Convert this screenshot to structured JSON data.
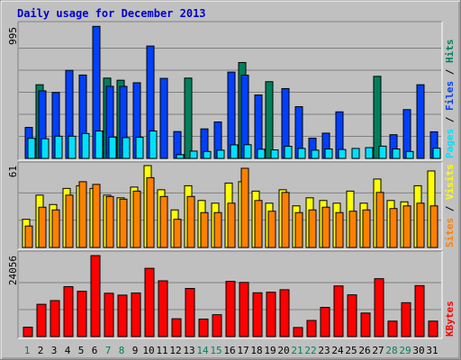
{
  "colors": {
    "background": "#c0c0c0",
    "hits": "#00805c",
    "files": "#0040ff",
    "pages": "#00e0ff",
    "visits": "#ffff00",
    "sites": "#ff8000",
    "kbytes": "#ff0000",
    "title": "#0000cc",
    "weekend": "#00805c",
    "weekday": "#000000"
  },
  "chart_data": [
    {
      "type": "bar",
      "title": "Daily usage for December 2013",
      "categories": [
        "1",
        "2",
        "3",
        "4",
        "5",
        "6",
        "7",
        "8",
        "9",
        "10",
        "11",
        "12",
        "13",
        "14",
        "15",
        "16",
        "17",
        "18",
        "19",
        "20",
        "21",
        "22",
        "23",
        "24",
        "25",
        "26",
        "27",
        "28",
        "29",
        "30",
        "31"
      ],
      "weekend_days": [
        "1",
        "7",
        "8",
        "14",
        "15",
        "21",
        "22",
        "28",
        "29"
      ],
      "y_max_label": "995",
      "ylim": [
        0,
        995
      ],
      "series": [
        {
          "name": "Hits",
          "values": [
            0,
            554,
            0,
            0,
            0,
            0,
            604,
            588,
            0,
            0,
            0,
            0,
            604,
            0,
            0,
            0,
            721,
            0,
            577,
            0,
            0,
            0,
            0,
            0,
            0,
            0,
            617,
            0,
            0,
            0,
            0
          ]
        },
        {
          "name": "Files",
          "values": [
            233,
            508,
            496,
            662,
            627,
            993,
            542,
            542,
            569,
            845,
            602,
            202,
            0,
            222,
            274,
            649,
            626,
            477,
            0,
            525,
            389,
            152,
            190,
            350,
            0,
            0,
            0,
            178,
            367,
            554,
            200
          ]
        },
        {
          "name": "Pages",
          "values": [
            151,
            148,
            167,
            167,
            187,
            206,
            160,
            156,
            159,
            206,
            0,
            28,
            55,
            52,
            62,
            102,
            103,
            69,
            64,
            91,
            75,
            62,
            71,
            67,
            75,
            81,
            92,
            71,
            52,
            0,
            77
          ]
        }
      ]
    },
    {
      "type": "bar",
      "categories": [
        "1",
        "2",
        "3",
        "4",
        "5",
        "6",
        "7",
        "8",
        "9",
        "10",
        "11",
        "12",
        "13",
        "14",
        "15",
        "16",
        "17",
        "18",
        "19",
        "20",
        "21",
        "22",
        "23",
        "24",
        "25",
        "26",
        "27",
        "28",
        "29",
        "30",
        "31"
      ],
      "y_max_label": "61",
      "ylim": [
        0,
        61
      ],
      "series": [
        {
          "name": "Visits",
          "values": [
            21,
            39,
            32,
            44,
            46,
            44,
            39,
            37,
            45,
            61,
            43,
            28,
            46,
            35,
            33,
            48,
            49,
            42,
            33,
            43,
            31,
            37,
            35,
            33,
            42,
            33,
            51,
            35,
            34,
            46,
            57
          ]
        },
        {
          "name": "Sites",
          "values": [
            16,
            30,
            28,
            39,
            49,
            47,
            38,
            36,
            42,
            52,
            38,
            21,
            38,
            26,
            26,
            33,
            59,
            35,
            27,
            41,
            26,
            28,
            30,
            26,
            27,
            28,
            41,
            29,
            31,
            33,
            31
          ]
        }
      ]
    },
    {
      "type": "bar",
      "categories": [
        "1",
        "2",
        "3",
        "4",
        "5",
        "6",
        "7",
        "8",
        "9",
        "10",
        "11",
        "12",
        "13",
        "14",
        "15",
        "16",
        "17",
        "18",
        "19",
        "20",
        "21",
        "22",
        "23",
        "24",
        "25",
        "26",
        "27",
        "28",
        "29",
        "30",
        "31"
      ],
      "y_max_label": "24056",
      "ylim": [
        0,
        24056
      ],
      "series": [
        {
          "name": "KBytes",
          "values": [
            2798,
            9596,
            10700,
            14839,
            13460,
            24056,
            12876,
            12322,
            12945,
            20286,
            16574,
            5300,
            14302,
            5206,
            6505,
            16397,
            16085,
            13015,
            13186,
            13927,
            2700,
            4800,
            8676,
            15054,
            12400,
            7000,
            17197,
            4600,
            10071,
            15146,
            4602
          ]
        }
      ]
    }
  ],
  "legends": {
    "top": [
      "Pages",
      "Files",
      "Hits"
    ],
    "middle": [
      "Sites",
      "Visits"
    ],
    "bottom": [
      "KBytes"
    ],
    "sep": " / "
  }
}
